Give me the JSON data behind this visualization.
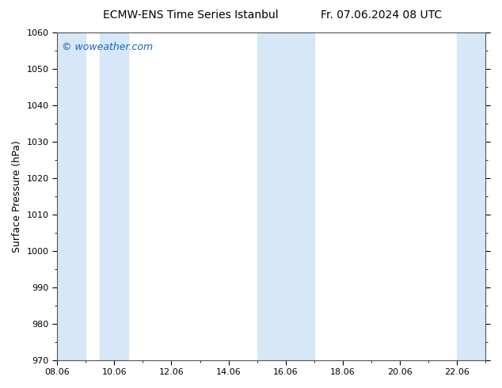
{
  "title_left": "ECMW-ENS Time Series Istanbul",
  "title_right": "Fr. 07.06.2024 08 UTC",
  "ylabel": "Surface Pressure (hPa)",
  "ylim": [
    970,
    1060
  ],
  "yticks": [
    970,
    980,
    990,
    1000,
    1010,
    1020,
    1030,
    1040,
    1050,
    1060
  ],
  "xtick_labels": [
    "08.06",
    "10.06",
    "12.06",
    "14.06",
    "16.06",
    "18.06",
    "20.06",
    "22.06"
  ],
  "band_color": "#d6e8f7",
  "background_color": "#ffffff",
  "plot_bg_color": "#ffffff",
  "watermark_text": "© woweather.com",
  "watermark_color": "#1565c0",
  "title_color": "#000000",
  "title_fontsize": 10,
  "ylabel_fontsize": 9,
  "tick_fontsize": 8,
  "watermark_fontsize": 9,
  "start_day": 8,
  "end_day": 23,
  "shaded_day_starts": [
    8,
    9.5,
    15,
    16,
    22
  ],
  "shaded_day_ends": [
    9,
    10.5,
    16,
    17,
    23.5
  ],
  "minor_tick_interval": 1
}
